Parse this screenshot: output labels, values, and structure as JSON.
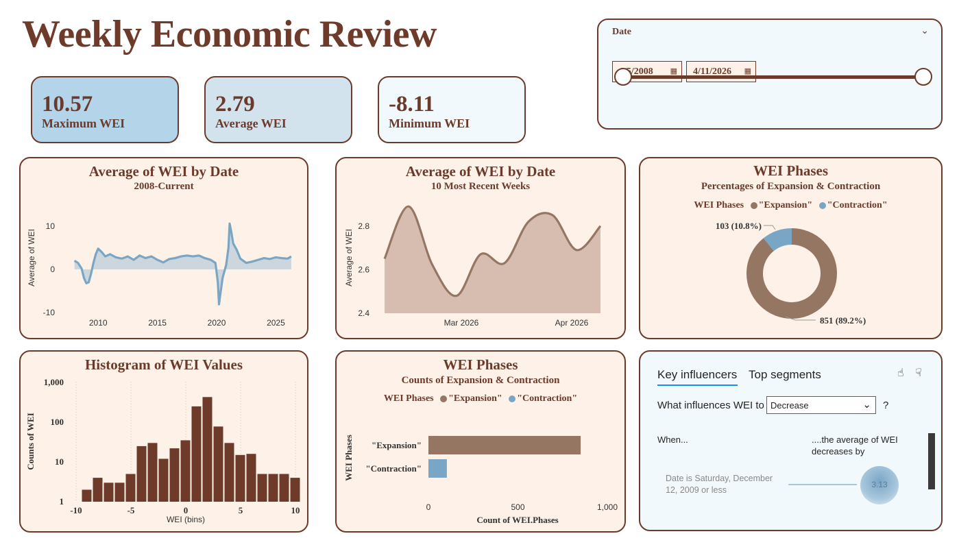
{
  "header": {
    "title": "Weekly Economic Review"
  },
  "kpis": [
    {
      "value": "10.57",
      "label": "Maximum WEI",
      "bg": "#b4d4ea"
    },
    {
      "value": "2.79",
      "label": "Average WEI",
      "bg": "#d2e3ed"
    },
    {
      "value": "-8.11",
      "label": "Minimum WEI",
      "bg": "#f1f9fc"
    }
  ],
  "slicer": {
    "label": "Date",
    "start": "1/5/2008",
    "end": "4/11/2026",
    "start_fraction": 0,
    "end_fraction": 1
  },
  "colors": {
    "brown": "#6b3a2a",
    "expansion": "#957662",
    "contraction": "#7aa6c6",
    "panel": "#fdf1e8",
    "line": "#7aa6c6",
    "area": "#d6bdb0"
  },
  "panels": {
    "line_all": {
      "title": "Average of WEI by Date",
      "subtitle": "2008-Current"
    },
    "line_recent": {
      "title": "Average of WEI by Date",
      "subtitle": "10 Most Recent Weeks"
    },
    "donut": {
      "title": "WEI Phases",
      "subtitle": "Percentages of Expansion & Contraction",
      "legend_title": "WEI Phases",
      "legend": [
        "\"Expansion\"",
        "\"Contraction\""
      ]
    },
    "histogram": {
      "title": "Histogram of WEI Values"
    },
    "bars": {
      "title": "WEI Phases",
      "subtitle": "Counts of Expansion & Contraction",
      "legend_title": "WEI Phases",
      "legend": [
        "\"Expansion\"",
        "\"Contraction\""
      ]
    },
    "influencers": {
      "tab_active": "Key influencers",
      "tab_other": "Top segments",
      "question": "What influences WEI to",
      "dropdown_value": "Decrease",
      "question_mark": "?",
      "col_when": "When...",
      "col_result": "....the average of WEI decreases by",
      "factor": "Date is Saturday, December 12, 2009 or less",
      "factor_value": "3.13"
    }
  },
  "chart_data": [
    {
      "type": "line",
      "title": "Average of WEI by Date",
      "subtitle": "2008-Current",
      "ylabel": "Average of WEI",
      "ylim": [
        -10,
        12
      ],
      "yticks": [
        "10",
        "0",
        "-10"
      ],
      "xticks": [
        "2010",
        "2015",
        "2020",
        "2025"
      ],
      "x": [
        2008.0,
        2008.3,
        2008.6,
        2008.8,
        2009.0,
        2009.2,
        2009.4,
        2009.6,
        2009.8,
        2010.0,
        2010.3,
        2010.6,
        2011.0,
        2011.5,
        2012.0,
        2012.5,
        2013.0,
        2013.5,
        2014.0,
        2014.5,
        2015.0,
        2015.5,
        2016.0,
        2016.5,
        2017.0,
        2017.5,
        2018.0,
        2018.5,
        2019.0,
        2019.5,
        2019.9,
        2020.1,
        2020.2,
        2020.3,
        2020.5,
        2020.8,
        2021.0,
        2021.1,
        2021.25,
        2021.4,
        2021.7,
        2022.0,
        2022.5,
        2023.0,
        2023.5,
        2024.0,
        2024.5,
        2025.0,
        2025.5,
        2026.0,
        2026.3
      ],
      "y": [
        2.0,
        1.5,
        0.2,
        -2.0,
        -3.2,
        -3.0,
        -1.0,
        1.5,
        3.5,
        4.8,
        4.0,
        3.0,
        3.5,
        2.8,
        2.5,
        3.0,
        2.2,
        3.2,
        2.6,
        3.0,
        2.2,
        1.6,
        2.4,
        2.6,
        3.0,
        3.2,
        3.0,
        3.2,
        2.6,
        2.2,
        1.5,
        -3.0,
        -8.1,
        -6.0,
        -2.0,
        1.0,
        5.0,
        10.6,
        8.5,
        6.0,
        4.5,
        2.5,
        1.5,
        1.8,
        2.2,
        2.6,
        2.4,
        2.8,
        2.6,
        2.5,
        3.0
      ]
    },
    {
      "type": "area",
      "title": "Average of WEI by Date",
      "subtitle": "10 Most Recent Weeks",
      "ylabel": "Average of WEI",
      "ylim": [
        2.4,
        2.9
      ],
      "yticks": [
        "2.8",
        "2.6",
        "2.4"
      ],
      "xticks": [
        "Mar 2026",
        "Apr 2026"
      ],
      "x": [
        "2/7/2026",
        "2/14/2026",
        "2/21/2026",
        "2/28/2026",
        "3/7/2026",
        "3/14/2026",
        "3/21/2026",
        "3/28/2026",
        "4/4/2026",
        "4/11/2026"
      ],
      "y": [
        2.65,
        2.89,
        2.62,
        2.48,
        2.67,
        2.63,
        2.82,
        2.85,
        2.69,
        2.8
      ]
    },
    {
      "type": "pie",
      "title": "WEI Phases",
      "subtitle": "Percentages of Expansion & Contraction",
      "labels": [
        "\"Expansion\"",
        "\"Contraction\""
      ],
      "values": [
        851,
        103
      ],
      "data_labels": [
        "851 (89.2%)",
        "103 (10.8%)"
      ]
    },
    {
      "type": "bar",
      "title": "Histogram of WEI Values",
      "xlabel": "WEI (bins)",
      "ylabel": "Counts of WEI",
      "log_scale": true,
      "ylim": [
        1,
        1000
      ],
      "yticks": [
        "1,000",
        "100",
        "10",
        "1"
      ],
      "xticks": [
        "-10",
        "-5",
        "0",
        "5",
        "10"
      ],
      "x": [
        -9,
        -8,
        -7,
        -6,
        -5,
        -4,
        -3,
        -2,
        -1,
        0,
        1,
        2,
        3,
        4,
        5,
        6,
        7,
        8,
        9,
        10
      ],
      "values": [
        2,
        4,
        3,
        3,
        5,
        25,
        30,
        12,
        22,
        35,
        250,
        430,
        78,
        30,
        15,
        16,
        5,
        5,
        5,
        4
      ]
    },
    {
      "type": "bar",
      "title": "WEI Phases",
      "subtitle": "Counts of Expansion & Contraction",
      "orientation": "horizontal",
      "categories": [
        "\"Expansion\"",
        "\"Contraction\""
      ],
      "values": [
        851,
        103
      ],
      "xlabel": "Count of WEI.Phases",
      "ylabel": "WEI Phases",
      "xlim": [
        0,
        1000
      ],
      "xticks": [
        "0",
        "500",
        "1,000"
      ]
    }
  ]
}
